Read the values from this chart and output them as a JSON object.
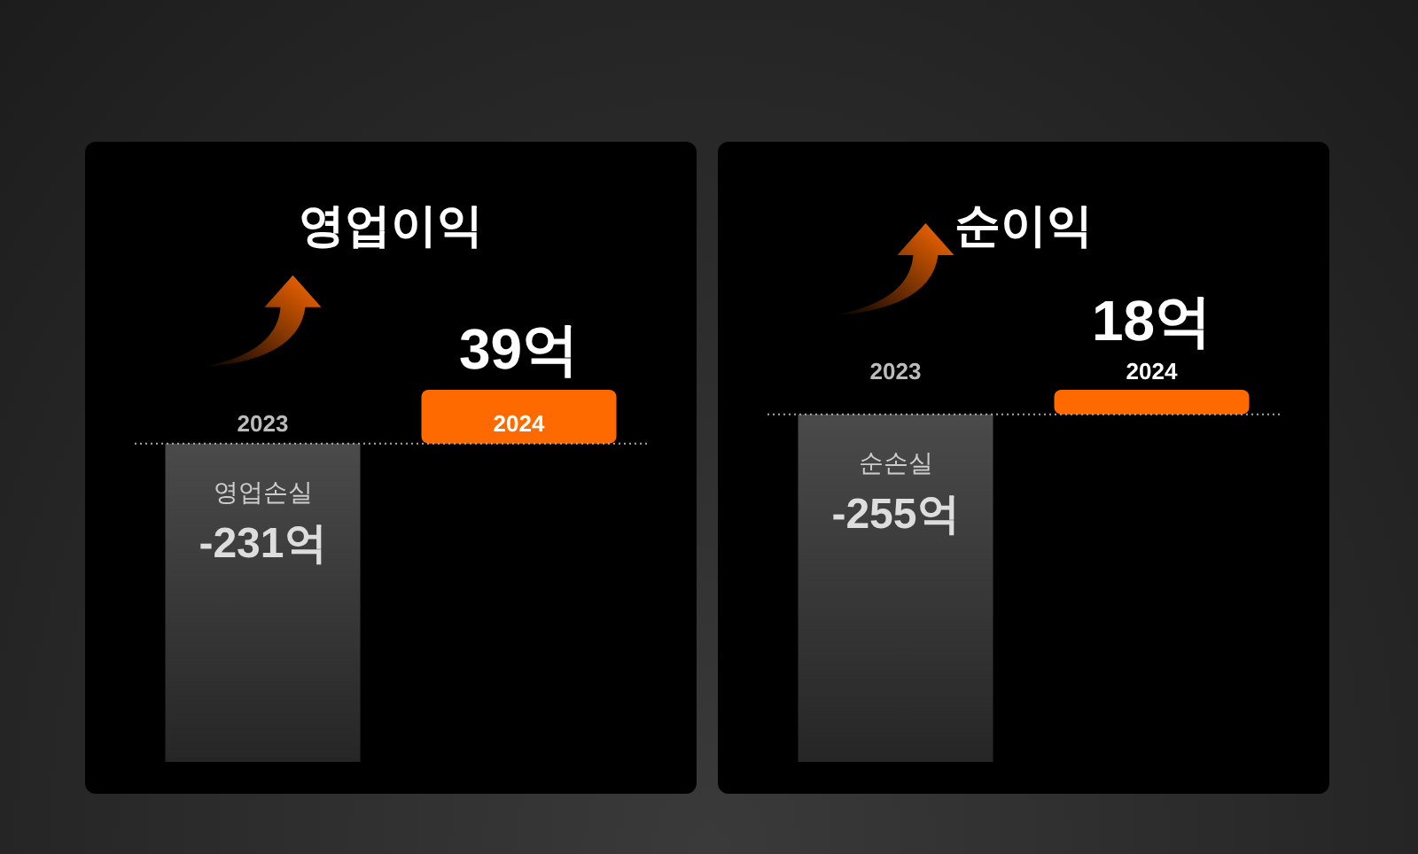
{
  "chart_data": [
    {
      "type": "bar",
      "title": "영업이익",
      "categories": [
        "2023",
        "2024"
      ],
      "values": [
        -231,
        39
      ],
      "colors": [
        "#4a4a4a",
        "#ff6a00"
      ],
      "value_labels": [
        "영업손실\n-231억",
        "39억"
      ],
      "ref_lines": [
        {
          "axis": "y",
          "value": 0,
          "color": "#aaaaaa",
          "line_style": "dotted"
        }
      ]
    },
    {
      "type": "bar",
      "title": "순이익",
      "categories": [
        "2023",
        "2024"
      ],
      "values": [
        -255,
        18
      ],
      "colors": [
        "#4a4a4a",
        "#ff6a00"
      ],
      "value_labels": [
        "순손실\n-255억",
        "18억"
      ],
      "ref_lines": [
        {
          "axis": "y",
          "value": 0,
          "color": "#aaaaaa",
          "line_style": "dotted"
        }
      ]
    }
  ]
}
